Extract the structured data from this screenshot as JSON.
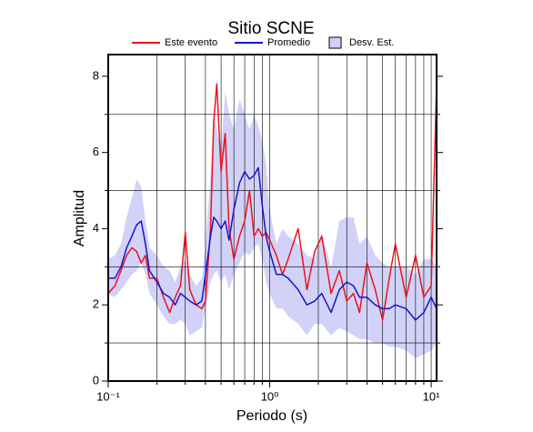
{
  "chart_data": {
    "type": "line",
    "title": "Sitio SCNE",
    "x_label": "Periodo (s)",
    "y_label": "Amplitud",
    "log_x": true,
    "grid": true,
    "xlim": [
      0.1,
      10.8
    ],
    "ylim": [
      0,
      8.57
    ],
    "xticks": [
      {
        "value": 0.1,
        "label": "10⁻¹"
      },
      {
        "value": 1,
        "label": "10⁰"
      },
      {
        "value": 10,
        "label": "10¹"
      }
    ],
    "x_minor_ticks": [
      0.2,
      0.3,
      0.4,
      0.5,
      0.6,
      0.7,
      0.8,
      0.9,
      2,
      3,
      4,
      5,
      6,
      7,
      8,
      9
    ],
    "yticks": [
      0,
      2,
      4,
      6,
      8
    ],
    "y_minor_ticks": [
      1,
      3,
      5,
      7
    ],
    "x": [
      0.1,
      0.11,
      0.12,
      0.13,
      0.14,
      0.15,
      0.16,
      0.17,
      0.18,
      0.2,
      0.22,
      0.24,
      0.26,
      0.28,
      0.3,
      0.32,
      0.35,
      0.38,
      0.4,
      0.43,
      0.45,
      0.47,
      0.5,
      0.53,
      0.56,
      0.6,
      0.65,
      0.7,
      0.75,
      0.8,
      0.85,
      0.9,
      0.95,
      1.0,
      1.1,
      1.2,
      1.3,
      1.5,
      1.7,
      1.9,
      2.1,
      2.4,
      2.7,
      3.0,
      3.3,
      3.6,
      4.0,
      4.5,
      5.0,
      5.5,
      6.0,
      7.0,
      8.0,
      9.0,
      10.0,
      10.8
    ],
    "series": [
      {
        "name": "Este evento",
        "color": "#e8141c",
        "values": [
          2.3,
          2.5,
          2.9,
          3.3,
          3.5,
          3.4,
          3.1,
          3.3,
          2.7,
          2.7,
          2.2,
          1.8,
          2.2,
          2.5,
          3.9,
          2.4,
          2.0,
          1.9,
          2.1,
          4.0,
          6.8,
          7.8,
          5.5,
          6.5,
          4.0,
          3.2,
          3.8,
          4.2,
          5.0,
          3.8,
          4.0,
          3.8,
          3.9,
          3.7,
          3.3,
          2.8,
          3.2,
          4.0,
          2.4,
          3.4,
          3.8,
          2.3,
          2.9,
          2.1,
          2.3,
          1.8,
          3.1,
          2.4,
          1.6,
          2.7,
          3.6,
          2.2,
          3.3,
          2.2,
          2.5,
          7.8
        ]
      },
      {
        "name": "Promedio",
        "color": "#1414d2",
        "values": [
          2.7,
          2.7,
          3.0,
          3.5,
          3.8,
          4.1,
          4.2,
          3.6,
          2.9,
          2.6,
          2.3,
          2.2,
          2.0,
          2.3,
          2.2,
          2.1,
          2.0,
          2.1,
          2.8,
          3.8,
          4.3,
          4.2,
          4.0,
          4.2,
          3.7,
          4.5,
          5.2,
          5.5,
          5.3,
          5.4,
          5.6,
          4.6,
          3.8,
          3.4,
          2.8,
          2.8,
          2.7,
          2.4,
          2.0,
          2.1,
          2.3,
          1.8,
          2.4,
          2.6,
          2.5,
          2.2,
          2.2,
          2.0,
          1.9,
          1.9,
          2.0,
          1.9,
          1.6,
          1.8,
          2.2,
          1.9
        ]
      },
      {
        "name": "Desv. Est.",
        "color": "#d2d2f8",
        "upper": [
          3.2,
          3.3,
          3.6,
          4.3,
          4.8,
          5.3,
          5.1,
          4.2,
          3.5,
          3.3,
          3.0,
          2.9,
          2.6,
          3.0,
          3.2,
          2.8,
          2.5,
          2.7,
          3.6,
          5.4,
          7.0,
          6.6,
          6.0,
          7.6,
          7.0,
          6.6,
          7.4,
          7.0,
          6.6,
          7.0,
          6.7,
          6.3,
          5.7,
          4.5,
          3.6,
          4.0,
          3.8,
          3.6,
          3.3,
          3.2,
          3.9,
          3.0,
          4.2,
          4.3,
          4.3,
          3.6,
          3.8,
          3.3,
          3.1,
          3.0,
          3.0,
          3.0,
          2.8,
          3.2,
          3.2,
          3.0
        ],
        "lower": [
          2.3,
          2.2,
          2.4,
          2.6,
          2.8,
          2.9,
          3.1,
          2.8,
          2.3,
          2.0,
          1.7,
          1.5,
          1.5,
          1.6,
          1.5,
          1.2,
          1.3,
          1.4,
          1.9,
          2.6,
          2.8,
          2.9,
          2.6,
          2.8,
          2.4,
          2.8,
          3.1,
          3.4,
          3.3,
          3.5,
          3.6,
          3.2,
          2.6,
          2.3,
          1.9,
          1.9,
          1.7,
          1.5,
          1.2,
          1.5,
          1.5,
          1.2,
          1.4,
          1.3,
          1.2,
          1.1,
          1.1,
          1.0,
          1.0,
          0.9,
          0.9,
          0.8,
          0.6,
          0.7,
          0.8,
          1.0
        ]
      }
    ]
  }
}
